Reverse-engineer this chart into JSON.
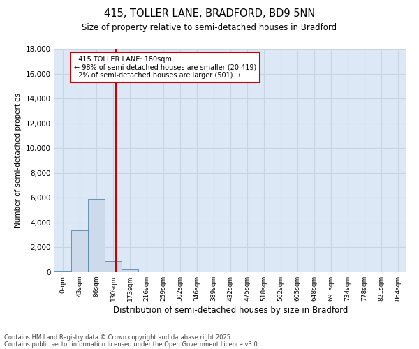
{
  "title": "415, TOLLER LANE, BRADFORD, BD9 5NN",
  "subtitle": "Size of property relative to semi-detached houses in Bradford",
  "xlabel": "Distribution of semi-detached houses by size in Bradford",
  "ylabel": "Number of semi-detached properties",
  "property_label": "415 TOLLER LANE: 180sqm",
  "pct_smaller": 98,
  "count_smaller": 20419,
  "pct_larger": 2,
  "count_larger": 501,
  "annotation_box_color": "#cc0000",
  "bar_color": "#ccdaeb",
  "bar_edge_color": "#5588aa",
  "vline_color": "#cc0000",
  "bg_color": "#dce8f5",
  "categories": [
    "0sqm",
    "43sqm",
    "86sqm",
    "130sqm",
    "173sqm",
    "216sqm",
    "259sqm",
    "302sqm",
    "346sqm",
    "389sqm",
    "432sqm",
    "475sqm",
    "518sqm",
    "562sqm",
    "605sqm",
    "648sqm",
    "691sqm",
    "734sqm",
    "778sqm",
    "821sqm",
    "864sqm"
  ],
  "values": [
    100,
    3400,
    5900,
    900,
    200,
    80,
    40,
    10,
    3,
    1,
    0,
    0,
    0,
    0,
    0,
    0,
    0,
    0,
    0,
    0,
    0
  ],
  "ylim": [
    0,
    18000
  ],
  "yticks": [
    0,
    2000,
    4000,
    6000,
    8000,
    10000,
    12000,
    14000,
    16000,
    18000
  ],
  "vline_x": 3.18,
  "footer1": "Contains HM Land Registry data © Crown copyright and database right 2025.",
  "footer2": "Contains public sector information licensed under the Open Government Licence v3.0.",
  "grid_color": "#c8d4e0",
  "title_fontsize": 10.5,
  "subtitle_fontsize": 8.5
}
